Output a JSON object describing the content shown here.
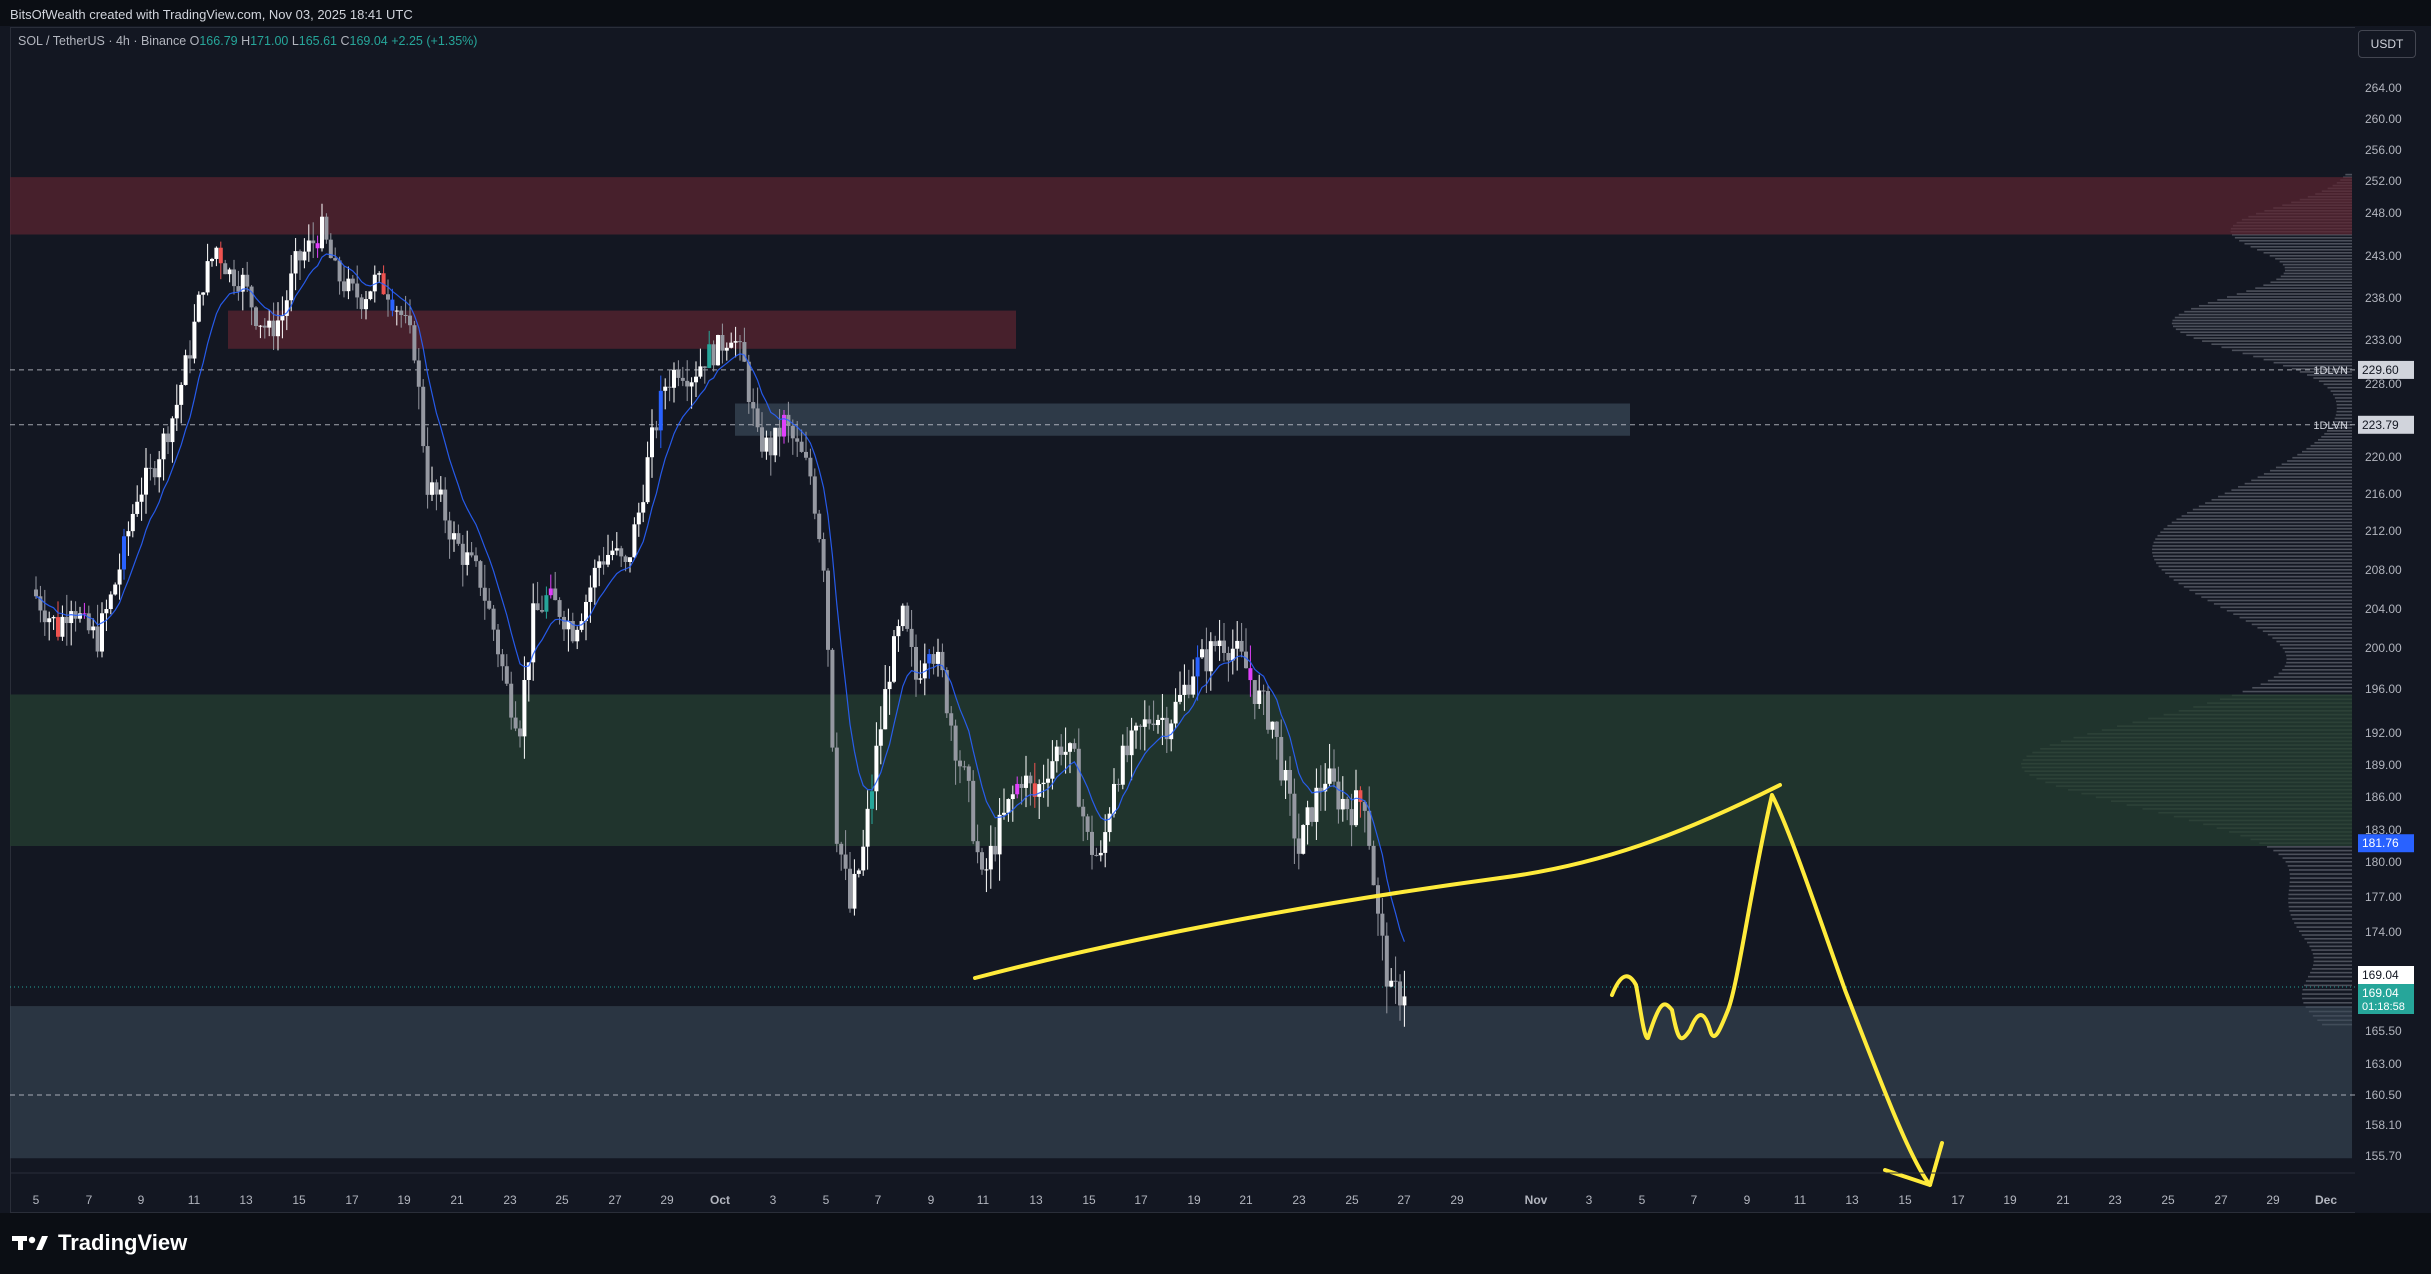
{
  "header": {
    "attribution": "BitsOfWealth created with TradingView.com, Nov 03, 2025 18:41 UTC"
  },
  "legend": {
    "symbol": "SOL / TetherUS · 4h · Binance",
    "open_label": "O",
    "open": "166.79",
    "high_label": "H",
    "high": "171.00",
    "low_label": "L",
    "low": "165.61",
    "close_label": "C",
    "close": "169.04",
    "change": "+2.25 (+1.35%)"
  },
  "currency_button": "USDT",
  "brand": "TradingView",
  "colors": {
    "up": "#ffffff",
    "down": "#9598a1",
    "ma": "#2962ff",
    "supply_zone": "#5c2430",
    "demand_zone": "#233a2f",
    "blue_zone": "#3a4a58",
    "drawing": "#ffeb3b",
    "last_price": "#26a69a",
    "marker_blue": "#2962ff"
  },
  "chart_data": {
    "type": "candlestick",
    "symbol": "SOL / TetherUS",
    "timeframe": "4h",
    "exchange": "Binance",
    "ylim": [
      154,
      266
    ],
    "y_ticks": [
      "264.00",
      "260.00",
      "256.00",
      "252.00",
      "248.00",
      "243.00",
      "238.00",
      "233.00",
      "228.00",
      "224.00",
      "220.00",
      "216.00",
      "212.00",
      "208.00",
      "204.00",
      "200.00",
      "196.00",
      "192.00",
      "189.00",
      "186.00",
      "183.00",
      "180.00",
      "177.00",
      "174.00",
      "165.50",
      "163.00",
      "160.50",
      "158.10",
      "155.70"
    ],
    "x_ticks": [
      "5",
      "7",
      "9",
      "11",
      "13",
      "15",
      "17",
      "19",
      "21",
      "23",
      "25",
      "27",
      "29",
      "Oct",
      "3",
      "5",
      "7",
      "9",
      "11",
      "13",
      "15",
      "17",
      "19",
      "21",
      "23",
      "25",
      "27",
      "29",
      "Nov",
      "3",
      "5",
      "7",
      "9",
      "11",
      "13",
      "15",
      "17",
      "19",
      "21",
      "23",
      "25",
      "27",
      "29",
      "Dec"
    ],
    "price_path": [
      [
        0,
        206
      ],
      [
        0.5,
        204
      ],
      [
        1,
        202
      ],
      [
        1.5,
        205
      ],
      [
        2,
        202
      ],
      [
        2.5,
        201
      ],
      [
        3,
        205
      ],
      [
        3.5,
        210
      ],
      [
        4,
        216
      ],
      [
        4.5,
        218
      ],
      [
        5,
        222
      ],
      [
        5.5,
        226
      ],
      [
        6,
        232
      ],
      [
        6.5,
        240
      ],
      [
        7,
        244
      ],
      [
        7.5,
        241
      ],
      [
        8,
        240
      ],
      [
        8.5,
        236
      ],
      [
        9,
        234
      ],
      [
        9.5,
        236
      ],
      [
        10,
        242
      ],
      [
        10.5,
        244
      ],
      [
        11,
        246
      ],
      [
        11.5,
        241
      ],
      [
        12,
        239
      ],
      [
        12.5,
        238
      ],
      [
        13,
        240
      ],
      [
        13.5,
        239
      ],
      [
        14,
        236
      ],
      [
        14.5,
        232
      ],
      [
        15,
        217
      ],
      [
        15.5,
        215
      ],
      [
        16,
        211
      ],
      [
        16.5,
        209
      ],
      [
        17,
        207
      ],
      [
        17.5,
        202
      ],
      [
        18,
        196
      ],
      [
        18.5,
        193
      ],
      [
        19,
        203
      ],
      [
        19.5,
        205
      ],
      [
        20,
        204
      ],
      [
        20.5,
        202
      ],
      [
        21,
        205
      ],
      [
        21.5,
        209
      ],
      [
        22,
        210
      ],
      [
        22.5,
        208
      ],
      [
        23,
        214
      ],
      [
        23.5,
        222
      ],
      [
        24,
        228
      ],
      [
        24.5,
        230
      ],
      [
        25,
        229
      ],
      [
        25.5,
        231
      ],
      [
        26,
        232
      ],
      [
        26.5,
        234
      ],
      [
        27,
        230
      ],
      [
        27.5,
        222
      ],
      [
        28,
        221
      ],
      [
        28.5,
        224
      ],
      [
        29,
        221
      ],
      [
        29.5,
        218
      ],
      [
        30,
        209
      ],
      [
        30.5,
        183
      ],
      [
        31,
        176
      ],
      [
        31.5,
        181
      ],
      [
        32,
        190
      ],
      [
        32.5,
        198
      ],
      [
        33,
        203
      ],
      [
        33.5,
        197
      ],
      [
        34,
        201
      ],
      [
        34.5,
        197
      ],
      [
        35,
        191
      ],
      [
        35.5,
        186
      ],
      [
        36,
        178
      ],
      [
        36.5,
        182
      ],
      [
        37,
        185
      ],
      [
        37.5,
        188
      ],
      [
        38,
        186
      ],
      [
        38.5,
        189
      ],
      [
        39,
        191
      ],
      [
        39.5,
        189
      ],
      [
        40,
        182
      ],
      [
        40.5,
        180
      ],
      [
        41,
        188
      ],
      [
        41.5,
        190
      ],
      [
        42,
        192
      ],
      [
        42.5,
        194
      ],
      [
        43,
        193
      ],
      [
        43.5,
        195
      ],
      [
        44,
        198
      ],
      [
        44.5,
        199
      ],
      [
        45,
        201
      ],
      [
        45.5,
        200
      ],
      [
        46,
        198
      ],
      [
        46.5,
        195
      ],
      [
        47,
        193
      ],
      [
        47.5,
        187
      ],
      [
        48,
        181
      ],
      [
        48.5,
        185
      ],
      [
        49,
        188
      ],
      [
        49.5,
        186
      ],
      [
        50,
        185
      ],
      [
        50.5,
        186
      ],
      [
        51,
        175
      ],
      [
        51.5,
        168
      ],
      [
        52,
        169.04
      ]
    ],
    "moving_average": "blue EMA following price",
    "zones": [
      {
        "kind": "supply",
        "from": 245.5,
        "to": 252.5
      },
      {
        "kind": "supply",
        "from": 232,
        "to": 236.5
      },
      {
        "kind": "liquidity",
        "from": 222.5,
        "to": 226
      },
      {
        "kind": "demand",
        "from": 181.5,
        "to": 195.5
      },
      {
        "kind": "support",
        "from": 155.5,
        "to": 167.5
      }
    ],
    "lines": [
      {
        "label": "1DLVN",
        "price": 229.6
      },
      {
        "label": "1DLVN",
        "price": 223.79
      },
      {
        "label": "",
        "price": 160.5
      }
    ],
    "price_labels": [
      {
        "value": "181.76",
        "kind": "blue"
      },
      {
        "value": "169.04",
        "kind": "current"
      },
      {
        "value": "169.04",
        "kind": "last"
      },
      {
        "value": "01:18:58",
        "kind": "countdown"
      }
    ],
    "drawings": "yellow rising trendline with projected bounce then drop arrow toward 155"
  }
}
